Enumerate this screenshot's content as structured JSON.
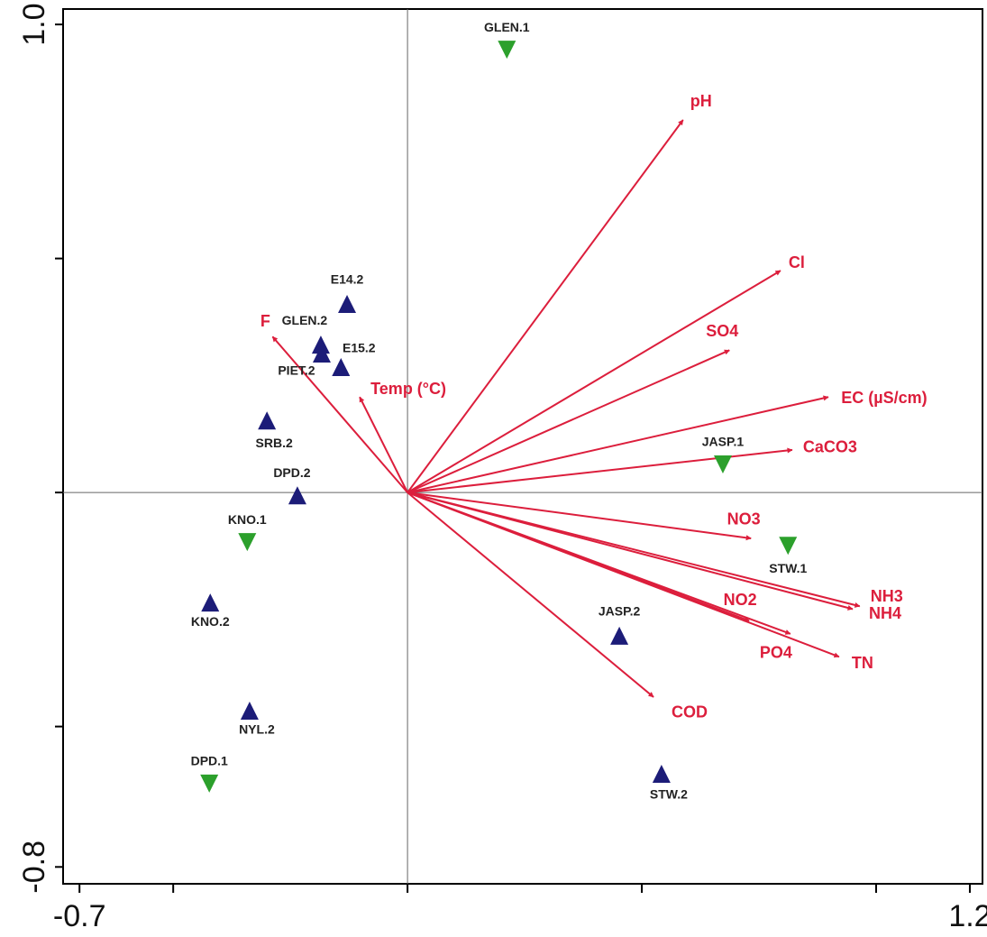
{
  "chart_data": {
    "type": "biplot",
    "xlim": [
      -0.735,
      1.227
    ],
    "ylim": [
      -0.836,
      1.033
    ],
    "xticks": [
      -0.7,
      1.2
    ],
    "xminor_ticks": [
      -0.5,
      0,
      0.5,
      1
    ],
    "yticks": [
      {
        "value": 1,
        "label": "1.0"
      },
      -0.8
    ],
    "yminor_ticks": [
      0.5,
      0,
      -0.5
    ],
    "arrows": {
      "color": "#dc1e3c",
      "labels": [
        "pH",
        "Cl",
        "SO4",
        "EC (µS/cm)",
        "CaCO3",
        "NO3",
        "NH3",
        "NH4",
        "NO2",
        "PO4",
        "TN",
        "COD",
        "F",
        "Temp (°C)"
      ],
      "x": [
        0.588,
        0.796,
        0.687,
        0.898,
        0.821,
        0.733,
        0.965,
        0.95,
        0.729,
        0.817,
        0.921,
        0.525,
        -0.288,
        -0.102
      ],
      "y": [
        0.796,
        0.474,
        0.304,
        0.204,
        0.091,
        -0.098,
        -0.243,
        -0.249,
        -0.274,
        -0.302,
        -0.351,
        -0.437,
        0.333,
        0.204
      ]
    },
    "sites": [
      {
        "marker": "triangle-down",
        "color": "#2ca02c",
        "labels": [
          "GLEN.1",
          "JASP.1",
          "STW.1",
          "KNO.1",
          "DPD.1"
        ],
        "x": [
          0.212,
          0.673,
          0.812,
          -0.342,
          -0.423
        ],
        "y": [
          0.946,
          0.06,
          -0.114,
          -0.106,
          -0.622
        ]
      },
      {
        "marker": "triangle-up",
        "color": "#1c1c78",
        "labels": [
          "E14.2",
          "GLEN.2",
          "PIET.2",
          "E15.2",
          "SRB.2",
          "DPD.2",
          "KNO.2",
          "JASP.2",
          "NYL.2",
          "STW.2"
        ],
        "x": [
          -0.129,
          -0.185,
          -0.183,
          -0.142,
          -0.3,
          -0.235,
          -0.421,
          0.452,
          -0.337,
          0.542
        ],
        "y": [
          0.403,
          0.316,
          0.297,
          0.268,
          0.154,
          -0.006,
          -0.235,
          -0.306,
          -0.466,
          -0.601
        ]
      }
    ]
  }
}
